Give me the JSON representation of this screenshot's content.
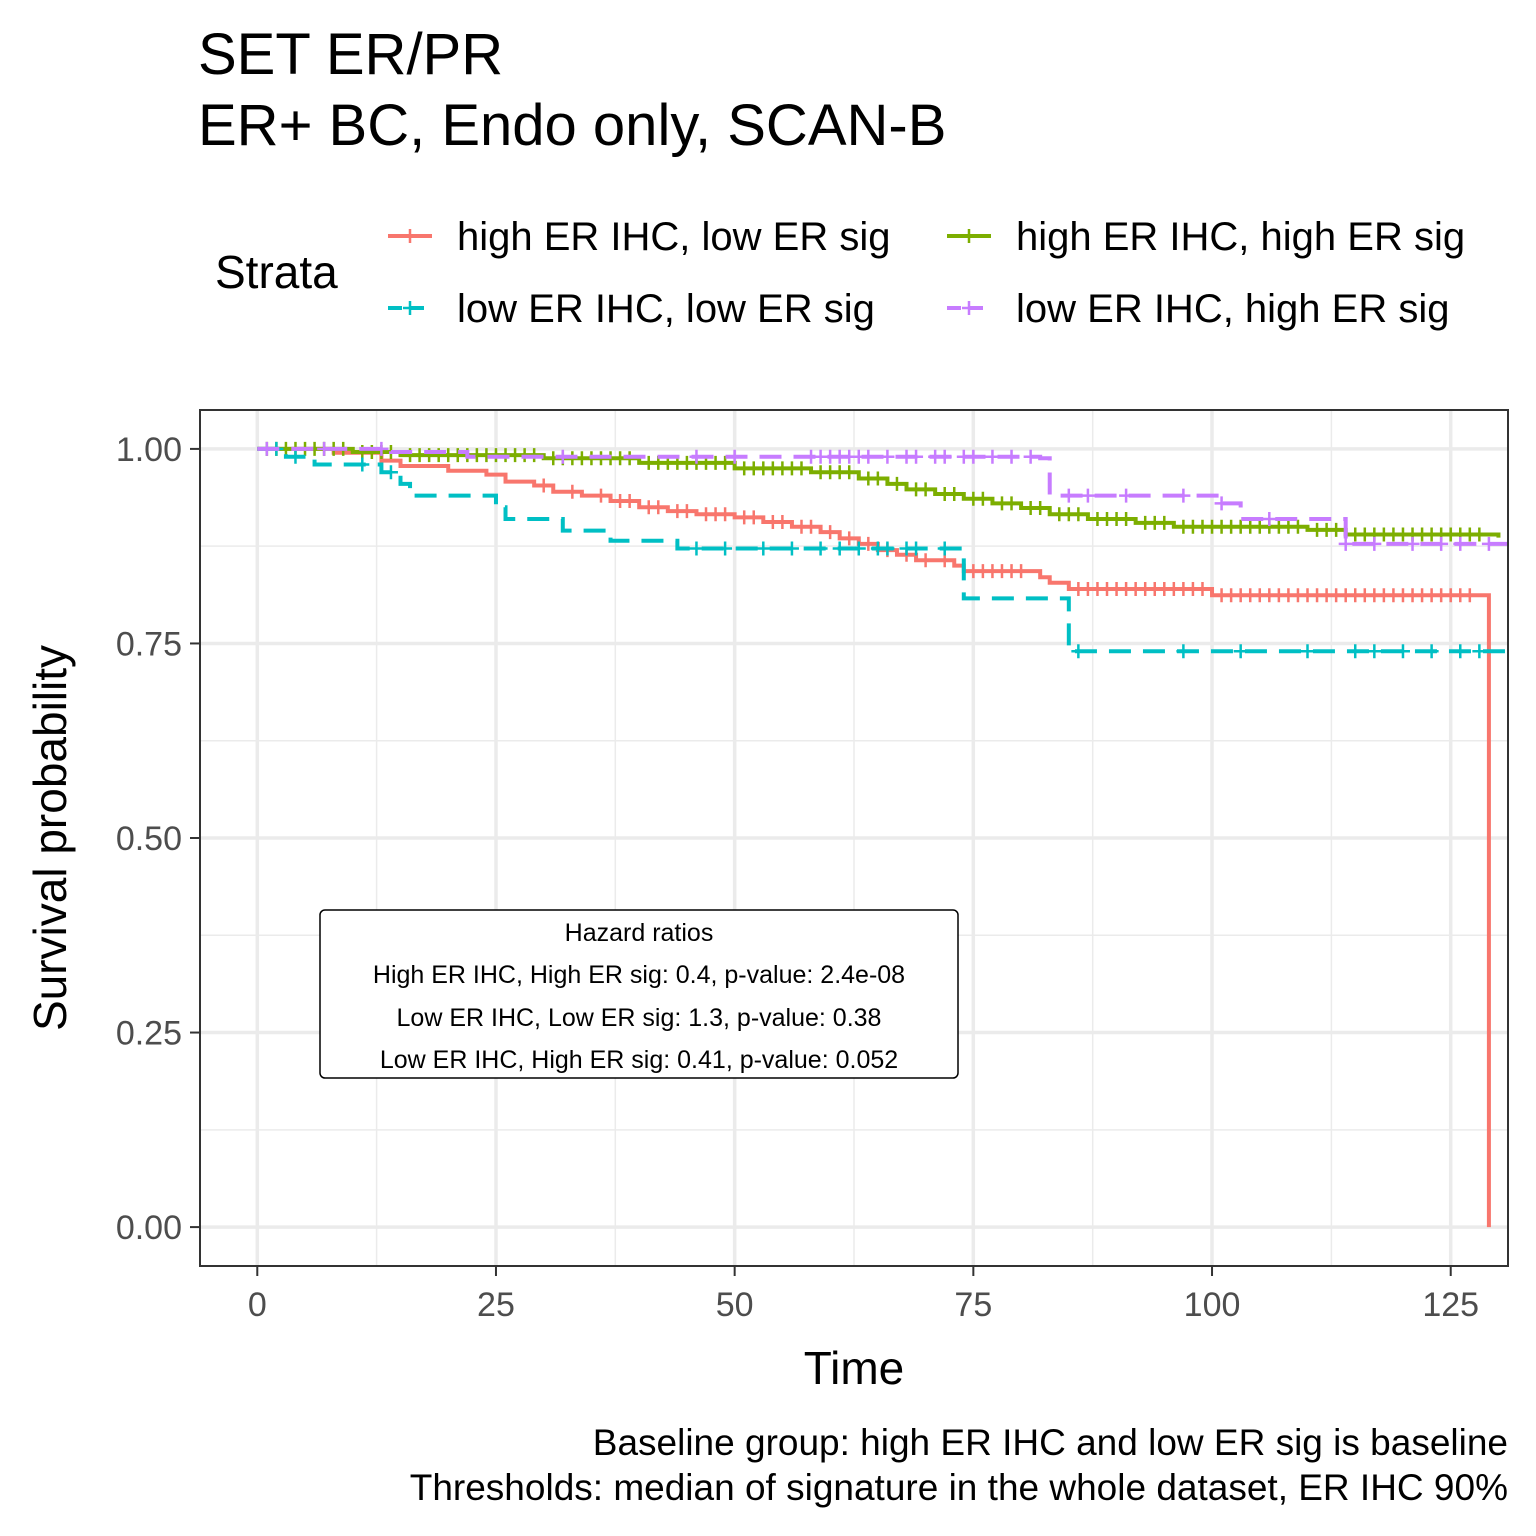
{
  "title": [
    "SET ER/PR",
    "ER+ BC, Endo only, SCAN-B"
  ],
  "legend": {
    "title": "Strata",
    "items": [
      {
        "label": "high ER IHC, low ER sig",
        "color": "#F8766D",
        "dash": "solid"
      },
      {
        "label": "high ER IHC, high ER sig",
        "color": "#7CAE00",
        "dash": "solid"
      },
      {
        "label": "low ER IHC, low ER sig",
        "color": "#00BFC4",
        "dash": "dashed"
      },
      {
        "label": "low ER IHC, high ER sig",
        "color": "#C77CFF",
        "dash": "dashed"
      }
    ]
  },
  "annotation": {
    "title": "Hazard ratios",
    "lines": [
      "High ER IHC, High ER sig: 0.4, p-value: 2.4e-08",
      "Low ER IHC, Low ER sig: 1.3, p-value: 0.38",
      "Low ER IHC, High ER sig: 0.41, p-value: 0.052"
    ]
  },
  "caption": [
    "Baseline group: high ER IHC and low ER sig is baseline",
    "Thresholds: median of signature in the whole dataset, ER IHC 90%"
  ],
  "chart_data": {
    "type": "line",
    "subtype": "kaplan-meier step",
    "xlabel": "Time",
    "ylabel": "Survival probability",
    "xlim": [
      -6,
      131
    ],
    "ylim": [
      -0.05,
      1.05
    ],
    "xticks": [
      0,
      25,
      50,
      75,
      100,
      125
    ],
    "xtick_labels": [
      "0",
      "25",
      "50",
      "75",
      "100",
      "125"
    ],
    "yticks": [
      0,
      0.25,
      0.5,
      0.75,
      1
    ],
    "ytick_labels": [
      "0.00",
      "0.25",
      "0.50",
      "0.75",
      "1.00"
    ],
    "grid": true,
    "legend_position": "top",
    "series": [
      {
        "name": "high ER IHC, low ER sig",
        "color": "#F8766D",
        "dash": "solid",
        "steps": [
          [
            0,
            1.0
          ],
          [
            8,
            0.995
          ],
          [
            13,
            0.985
          ],
          [
            15,
            0.978
          ],
          [
            20,
            0.972
          ],
          [
            24,
            0.967
          ],
          [
            26,
            0.958
          ],
          [
            29,
            0.953
          ],
          [
            31,
            0.945
          ],
          [
            34,
            0.94
          ],
          [
            37,
            0.933
          ],
          [
            40,
            0.925
          ],
          [
            43,
            0.92
          ],
          [
            46,
            0.916
          ],
          [
            50,
            0.912
          ],
          [
            53,
            0.906
          ],
          [
            56,
            0.9
          ],
          [
            59,
            0.893
          ],
          [
            61,
            0.885
          ],
          [
            63,
            0.878
          ],
          [
            65,
            0.87
          ],
          [
            67,
            0.864
          ],
          [
            69,
            0.857
          ],
          [
            73,
            0.85
          ],
          [
            74,
            0.843
          ],
          [
            82,
            0.835
          ],
          [
            83,
            0.828
          ],
          [
            85,
            0.82
          ],
          [
            100,
            0.812
          ],
          [
            129,
            0.812
          ],
          [
            129,
            0.0
          ]
        ],
        "censors": [
          30,
          33,
          36,
          38,
          39,
          41,
          42,
          44,
          45,
          47,
          48,
          49,
          51,
          52,
          54,
          55,
          57,
          58,
          60,
          62,
          64,
          66,
          68,
          70,
          72,
          75,
          76,
          77,
          78,
          79,
          80,
          86,
          87,
          88,
          89,
          90,
          91,
          92,
          93,
          94,
          95,
          96,
          97,
          98,
          99,
          101,
          102,
          103,
          104,
          105,
          106,
          107,
          108,
          109,
          110,
          111,
          112,
          113,
          114,
          115,
          116,
          117,
          118,
          119,
          120,
          121,
          122,
          123,
          124,
          125,
          126,
          127
        ]
      },
      {
        "name": "high ER IHC, high ER sig",
        "color": "#7CAE00",
        "dash": "solid",
        "steps": [
          [
            0,
            1.0
          ],
          [
            10,
            0.996
          ],
          [
            15,
            0.992
          ],
          [
            30,
            0.988
          ],
          [
            40,
            0.982
          ],
          [
            50,
            0.975
          ],
          [
            58,
            0.97
          ],
          [
            63,
            0.962
          ],
          [
            66,
            0.955
          ],
          [
            68,
            0.948
          ],
          [
            71,
            0.942
          ],
          [
            74,
            0.936
          ],
          [
            77,
            0.93
          ],
          [
            80,
            0.924
          ],
          [
            83,
            0.916
          ],
          [
            87,
            0.91
          ],
          [
            92,
            0.905
          ],
          [
            96,
            0.9
          ],
          [
            110,
            0.896
          ],
          [
            114,
            0.89
          ],
          [
            130,
            0.886
          ]
        ],
        "censors": [
          1,
          2,
          3,
          4,
          5,
          6,
          7,
          8,
          9,
          11,
          12,
          13,
          14,
          16,
          17,
          18,
          19,
          20,
          21,
          22,
          23,
          24,
          25,
          26,
          27,
          28,
          29,
          31,
          32,
          33,
          34,
          35,
          36,
          37,
          38,
          39,
          41,
          42,
          43,
          44,
          45,
          46,
          47,
          48,
          49,
          51,
          52,
          53,
          54,
          55,
          56,
          57,
          59,
          60,
          61,
          62,
          64,
          65,
          67,
          69,
          70,
          72,
          73,
          75,
          76,
          78,
          79,
          81,
          82,
          84,
          85,
          86,
          88,
          89,
          90,
          91,
          93,
          94,
          95,
          97,
          98,
          99,
          100,
          101,
          102,
          103,
          104,
          105,
          106,
          107,
          108,
          109,
          111,
          112,
          113,
          115,
          116,
          117,
          118,
          119,
          120,
          121,
          122,
          123,
          124,
          125,
          126,
          127,
          128
        ]
      },
      {
        "name": "low ER IHC, low ER sig",
        "color": "#00BFC4",
        "dash": "dashed",
        "steps": [
          [
            0,
            1.0
          ],
          [
            3,
            0.99
          ],
          [
            6,
            0.98
          ],
          [
            13,
            0.97
          ],
          [
            15,
            0.955
          ],
          [
            16,
            0.94
          ],
          [
            25,
            0.925
          ],
          [
            26,
            0.91
          ],
          [
            32,
            0.895
          ],
          [
            37,
            0.882
          ],
          [
            44,
            0.872
          ],
          [
            74,
            0.808
          ],
          [
            85,
            0.74
          ],
          [
            131,
            0.74
          ]
        ],
        "censors": [
          2,
          4,
          11,
          14,
          46,
          49,
          53,
          56,
          59,
          61,
          63,
          65,
          66,
          68,
          69,
          72,
          86,
          97,
          103,
          110,
          115,
          117,
          120,
          123,
          126,
          128
        ]
      },
      {
        "name": "low ER IHC, high ER sig",
        "color": "#C77CFF",
        "dash": "dashed",
        "steps": [
          [
            0,
            1.0
          ],
          [
            14,
            0.996
          ],
          [
            22,
            0.99
          ],
          [
            50,
            0.99
          ],
          [
            82,
            0.988
          ],
          [
            83,
            0.94
          ],
          [
            101,
            0.93
          ],
          [
            103,
            0.91
          ],
          [
            114,
            0.878
          ],
          [
            131,
            0.878
          ]
        ],
        "censors": [
          1,
          7,
          13,
          32,
          46,
          50,
          58,
          59,
          60,
          61,
          62,
          63,
          64,
          66,
          68,
          69,
          71,
          72,
          74,
          75,
          77,
          79,
          81,
          85,
          87,
          91,
          97,
          101,
          106,
          114,
          117,
          121,
          124,
          126,
          129
        ]
      }
    ]
  }
}
